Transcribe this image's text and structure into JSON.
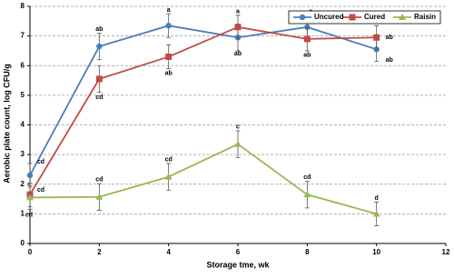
{
  "chart_data": {
    "type": "line",
    "x_label": "Storage tme, wk",
    "y_label": "Aerobic plate count, log CFU/g",
    "xlim": [
      0,
      12
    ],
    "xticks": [
      0,
      2,
      4,
      6,
      8,
      10,
      12
    ],
    "ylim": [
      0,
      8
    ],
    "yticks": [
      0,
      1,
      2,
      3,
      4,
      5,
      6,
      7,
      8
    ],
    "grid": true,
    "legend": "top-right",
    "x": [
      0,
      2,
      4,
      6,
      8,
      10
    ],
    "series": [
      {
        "name": "Uncured",
        "color": "#4a7ebb",
        "marker": "circle",
        "values": [
          2.3,
          6.65,
          7.35,
          6.95,
          7.3,
          6.55
        ],
        "errors": [
          0.4,
          0.45,
          0.4,
          0.45,
          0.45,
          0.4
        ],
        "letters": [
          "cd",
          "ab",
          "a",
          "ab",
          "a",
          "ab"
        ]
      },
      {
        "name": "Cured",
        "color": "#be4b48",
        "marker": "square",
        "values": [
          1.65,
          5.55,
          6.3,
          7.3,
          6.9,
          6.95
        ],
        "errors": [
          0.4,
          0.45,
          0.4,
          0.4,
          0.4,
          0.4
        ],
        "letters": [
          "cd",
          "cd",
          "ab",
          "a",
          "ab",
          "ab"
        ]
      },
      {
        "name": "Raisin",
        "color": "#98b954",
        "marker": "triangle",
        "values": [
          1.55,
          1.57,
          2.25,
          3.35,
          1.65,
          1.0
        ],
        "errors": [
          0.4,
          0.45,
          0.45,
          0.45,
          0.45,
          0.4
        ],
        "letters": [
          "cd",
          "cd",
          "cd",
          "c",
          "cd",
          "d"
        ]
      }
    ]
  }
}
